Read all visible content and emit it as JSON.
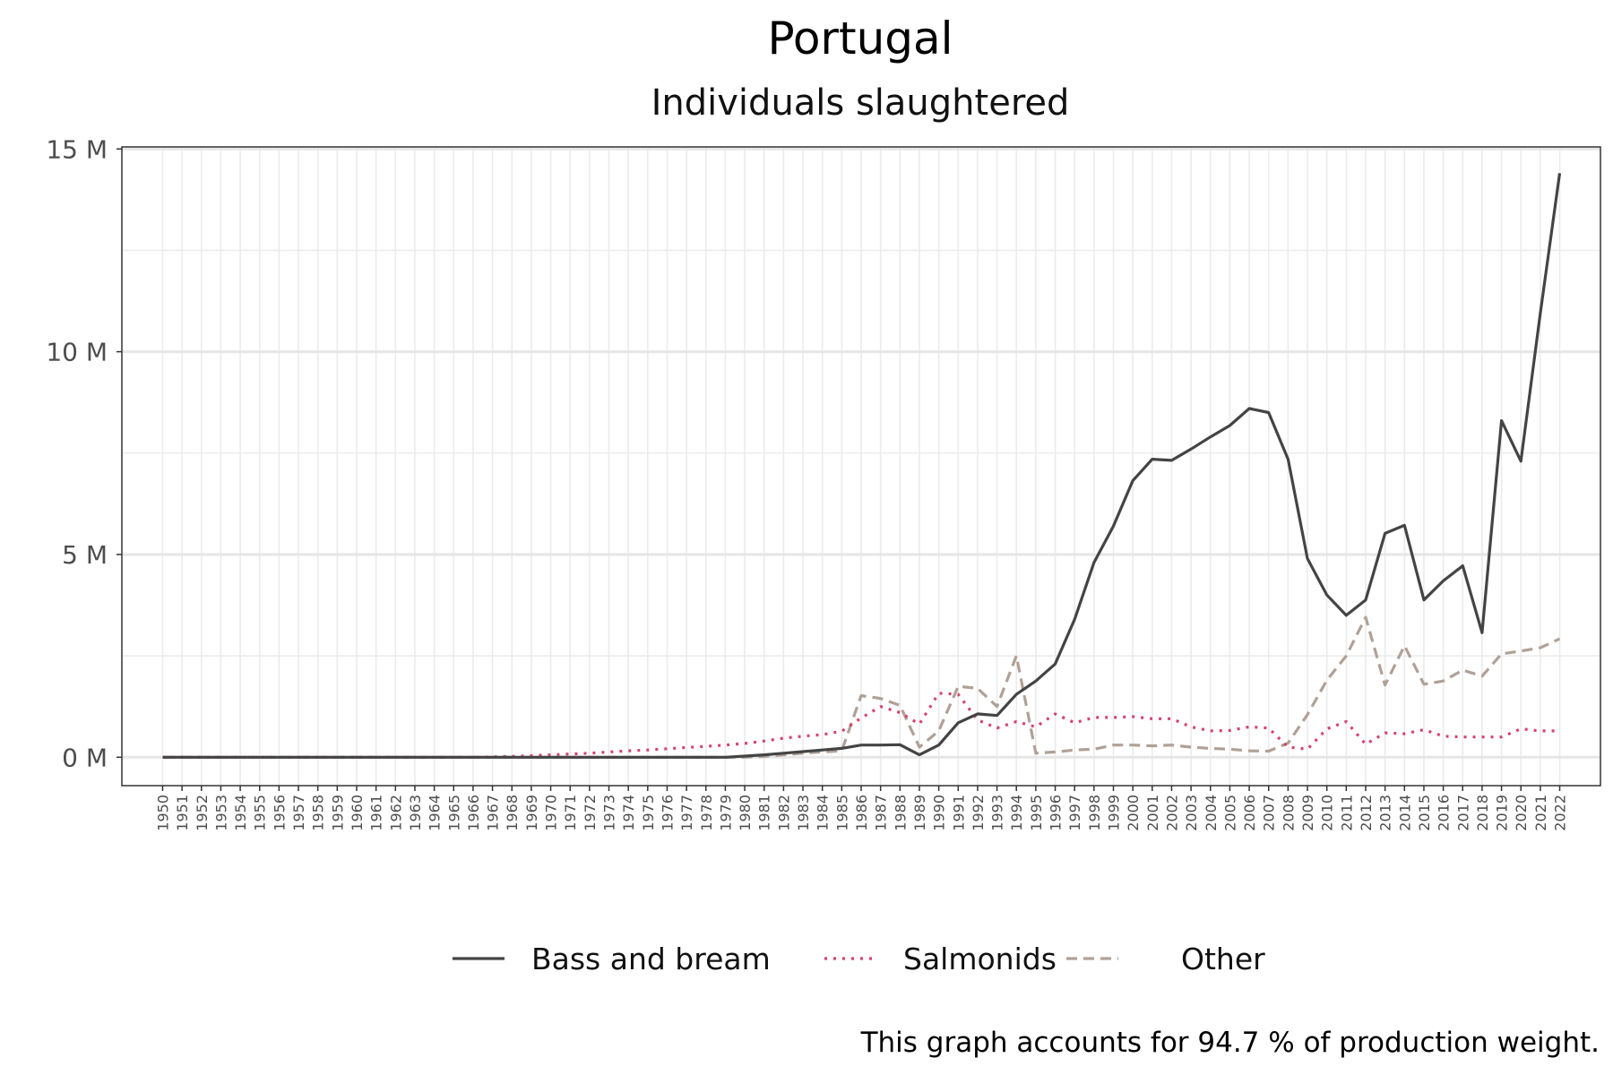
{
  "chart_data": {
    "type": "line",
    "title": "Portugal",
    "subtitle": "Individuals slaughtered",
    "caption": "This graph accounts for 94.7 % of production weight.",
    "y_tick_labels": [
      "0 M",
      "5 M",
      "10 M",
      "15 M"
    ],
    "y_ticks": [
      0,
      5,
      10,
      15
    ],
    "ylim": [
      -0.7,
      15.05
    ],
    "xlim": [
      1947.9,
      2024.1
    ],
    "x": [
      1950,
      1951,
      1952,
      1953,
      1954,
      1955,
      1956,
      1957,
      1958,
      1959,
      1960,
      1961,
      1962,
      1963,
      1964,
      1965,
      1966,
      1967,
      1968,
      1969,
      1970,
      1971,
      1972,
      1973,
      1974,
      1975,
      1976,
      1977,
      1978,
      1979,
      1980,
      1981,
      1982,
      1983,
      1984,
      1985,
      1986,
      1987,
      1988,
      1989,
      1990,
      1991,
      1992,
      1993,
      1994,
      1995,
      1996,
      1997,
      1998,
      1999,
      2000,
      2001,
      2002,
      2003,
      2004,
      2005,
      2006,
      2007,
      2008,
      2009,
      2010,
      2011,
      2012,
      2013,
      2014,
      2015,
      2016,
      2017,
      2018,
      2019,
      2020,
      2021,
      2022
    ],
    "x_tick_labels": [
      "1950",
      "1951",
      "1952",
      "1953",
      "1954",
      "1955",
      "1956",
      "1957",
      "1958",
      "1959",
      "1960",
      "1961",
      "1962",
      "1963",
      "1964",
      "1965",
      "1966",
      "1967",
      "1968",
      "1969",
      "1970",
      "1971",
      "1972",
      "1973",
      "1974",
      "1975",
      "1976",
      "1977",
      "1978",
      "1979",
      "1980",
      "1981",
      "1982",
      "1983",
      "1984",
      "1985",
      "1986",
      "1987",
      "1988",
      "1989",
      "1990",
      "1991",
      "1992",
      "1993",
      "1994",
      "1995",
      "1996",
      "1997",
      "1998",
      "1999",
      "2000",
      "2001",
      "2002",
      "2003",
      "2004",
      "2005",
      "2006",
      "2007",
      "2008",
      "2009",
      "2010",
      "2011",
      "2012",
      "2013",
      "2014",
      "2015",
      "2016",
      "2017",
      "2018",
      "2019",
      "2020",
      "2021",
      "2022"
    ],
    "grid": true,
    "legend_position": "bottom",
    "series": [
      {
        "name": "Bass and bream",
        "color": "#444444",
        "dash": "solid",
        "values": [
          0,
          0,
          0,
          0,
          0,
          0,
          0,
          0,
          0,
          0,
          0,
          0,
          0,
          0,
          0,
          0,
          0,
          0,
          0,
          0,
          0,
          0,
          0,
          0,
          0,
          0,
          0,
          0,
          0,
          0,
          0.03,
          0.06,
          0.1,
          0.14,
          0.18,
          0.22,
          0.3,
          0.3,
          0.31,
          0.06,
          0.3,
          0.85,
          1.07,
          1.03,
          1.55,
          1.88,
          2.3,
          3.4,
          4.8,
          5.7,
          6.82,
          7.35,
          7.32,
          7.6,
          7.9,
          8.18,
          8.6,
          8.5,
          7.35,
          4.9,
          4.0,
          3.5,
          3.88,
          5.52,
          5.72,
          3.88,
          4.35,
          4.72,
          3.07,
          8.3,
          7.3,
          10.95,
          14.4
        ]
      },
      {
        "name": "Salmonids",
        "color": "#d6436e",
        "dash": "dotted",
        "values": [
          0,
          0,
          0,
          0,
          0,
          0,
          0,
          0,
          0,
          0,
          0,
          0,
          0,
          0,
          0,
          0,
          0,
          0.01,
          0.02,
          0.04,
          0.06,
          0.08,
          0.1,
          0.13,
          0.16,
          0.18,
          0.21,
          0.24,
          0.27,
          0.3,
          0.34,
          0.4,
          0.47,
          0.52,
          0.56,
          0.64,
          0.97,
          1.25,
          1.1,
          0.82,
          1.58,
          1.55,
          0.92,
          0.72,
          0.88,
          0.75,
          1.07,
          0.85,
          0.98,
          0.98,
          1.0,
          0.95,
          0.95,
          0.75,
          0.65,
          0.66,
          0.75,
          0.72,
          0.25,
          0.2,
          0.7,
          0.88,
          0.32,
          0.6,
          0.58,
          0.68,
          0.52,
          0.5,
          0.5,
          0.5,
          0.7,
          0.65,
          0.65
        ]
      },
      {
        "name": "Other",
        "color": "#b0a197",
        "dash": "dashed",
        "values": [
          0,
          0,
          0,
          0,
          0,
          0,
          0,
          0,
          0,
          0,
          0,
          0,
          0,
          0,
          0,
          0,
          0,
          0,
          0,
          0,
          0,
          0,
          0,
          0,
          0,
          0,
          0,
          0,
          0,
          0,
          0,
          0.02,
          0.06,
          0.1,
          0.13,
          0.16,
          1.52,
          1.45,
          1.28,
          0.25,
          0.65,
          1.75,
          1.7,
          1.25,
          2.5,
          0.1,
          0.13,
          0.18,
          0.2,
          0.3,
          0.3,
          0.28,
          0.3,
          0.25,
          0.22,
          0.2,
          0.16,
          0.15,
          0.35,
          1.05,
          1.9,
          2.5,
          3.45,
          1.78,
          2.75,
          1.8,
          1.88,
          2.15,
          2.0,
          2.55,
          2.62,
          2.7,
          2.92
        ]
      }
    ]
  }
}
